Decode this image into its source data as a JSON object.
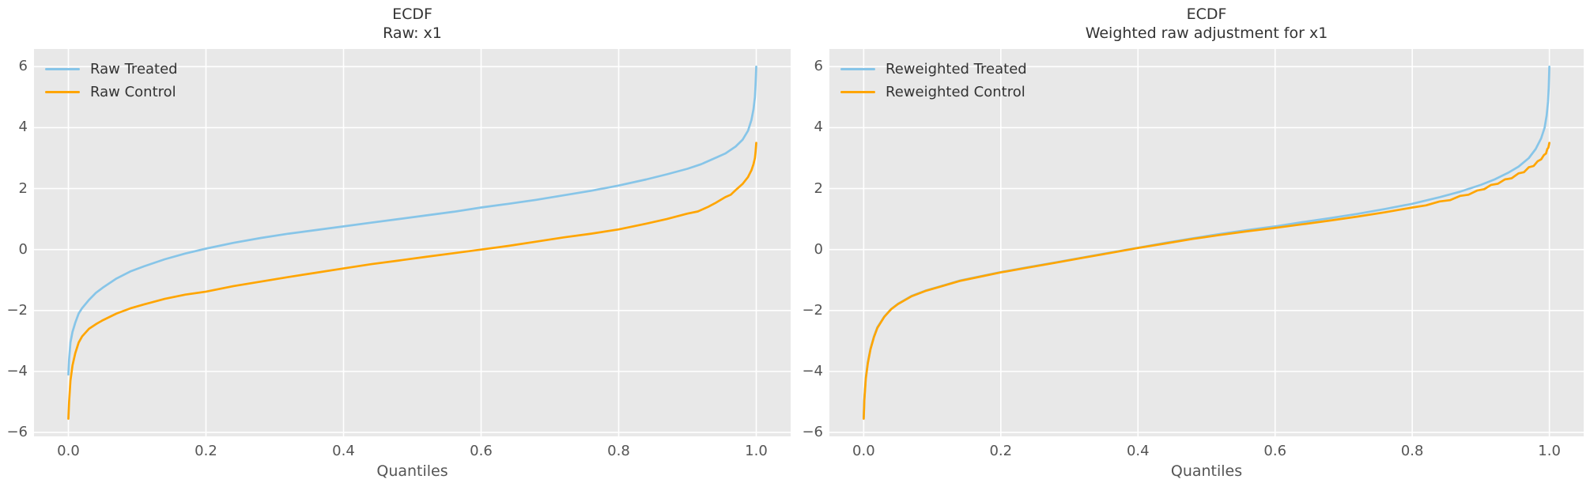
{
  "figure": {
    "background": "#ffffff",
    "axes_background": "#e8e8e8",
    "grid_color": "#ffffff",
    "tick_color": "#555555",
    "title_color": "#333333",
    "treated_color": "#87c5e8",
    "control_color": "#ffa500"
  },
  "chart_data": [
    {
      "type": "line",
      "title": "ECDF",
      "subtitle": "Raw: x1",
      "xlabel": "Quantiles",
      "grid": true,
      "legend_position": "upper left",
      "xlim": [
        -0.05,
        1.05
      ],
      "ylim": [
        -6.13,
        6.58
      ],
      "xticks": {
        "values": [
          0.0,
          0.2,
          0.4,
          0.6,
          0.8,
          1.0
        ],
        "labels": [
          "0.0",
          "0.2",
          "0.4",
          "0.6",
          "0.8",
          "1.0"
        ]
      },
      "yticks": {
        "values": [
          6,
          4,
          2,
          0,
          -2,
          -4,
          -6
        ],
        "labels": [
          "6",
          "4",
          "2",
          "0",
          "−2",
          "−4",
          "−6"
        ]
      },
      "series": [
        {
          "name": "Raw Treated",
          "color": "#87c5e8",
          "points": [
            [
              0,
              -4.1
            ],
            [
              0.001,
              -3.6
            ],
            [
              0.003,
              -3.05
            ],
            [
              0.006,
              -2.7
            ],
            [
              0.01,
              -2.4
            ],
            [
              0.015,
              -2.1
            ],
            [
              0.02,
              -1.92
            ],
            [
              0.03,
              -1.65
            ],
            [
              0.04,
              -1.42
            ],
            [
              0.05,
              -1.25
            ],
            [
              0.07,
              -0.95
            ],
            [
              0.09,
              -0.72
            ],
            [
              0.11,
              -0.55
            ],
            [
              0.14,
              -0.32
            ],
            [
              0.17,
              -0.13
            ],
            [
              0.2,
              0.03
            ],
            [
              0.24,
              0.22
            ],
            [
              0.28,
              0.38
            ],
            [
              0.32,
              0.52
            ],
            [
              0.36,
              0.64
            ],
            [
              0.4,
              0.76
            ],
            [
              0.44,
              0.88
            ],
            [
              0.48,
              1.0
            ],
            [
              0.52,
              1.12
            ],
            [
              0.56,
              1.24
            ],
            [
              0.6,
              1.38
            ],
            [
              0.64,
              1.5
            ],
            [
              0.68,
              1.63
            ],
            [
              0.72,
              1.78
            ],
            [
              0.76,
              1.93
            ],
            [
              0.8,
              2.1
            ],
            [
              0.84,
              2.3
            ],
            [
              0.87,
              2.47
            ],
            [
              0.9,
              2.65
            ],
            [
              0.92,
              2.8
            ],
            [
              0.94,
              3.0
            ],
            [
              0.955,
              3.15
            ],
            [
              0.97,
              3.38
            ],
            [
              0.98,
              3.6
            ],
            [
              0.988,
              3.9
            ],
            [
              0.993,
              4.25
            ],
            [
              0.996,
              4.6
            ],
            [
              0.998,
              5.0
            ],
            [
              0.999,
              5.4
            ],
            [
              1,
              6.0
            ]
          ]
        },
        {
          "name": "Raw Control",
          "color": "#ffa500",
          "points": [
            [
              0,
              -5.55
            ],
            [
              0.001,
              -5.0
            ],
            [
              0.003,
              -4.3
            ],
            [
              0.006,
              -3.8
            ],
            [
              0.01,
              -3.4
            ],
            [
              0.015,
              -3.05
            ],
            [
              0.02,
              -2.85
            ],
            [
              0.03,
              -2.6
            ],
            [
              0.04,
              -2.45
            ],
            [
              0.05,
              -2.32
            ],
            [
              0.07,
              -2.1
            ],
            [
              0.09,
              -1.93
            ],
            [
              0.11,
              -1.8
            ],
            [
              0.14,
              -1.62
            ],
            [
              0.17,
              -1.48
            ],
            [
              0.2,
              -1.38
            ],
            [
              0.24,
              -1.2
            ],
            [
              0.28,
              -1.05
            ],
            [
              0.32,
              -0.9
            ],
            [
              0.36,
              -0.76
            ],
            [
              0.4,
              -0.62
            ],
            [
              0.44,
              -0.48
            ],
            [
              0.48,
              -0.36
            ],
            [
              0.52,
              -0.24
            ],
            [
              0.56,
              -0.12
            ],
            [
              0.6,
              0.0
            ],
            [
              0.64,
              0.12
            ],
            [
              0.68,
              0.26
            ],
            [
              0.72,
              0.4
            ],
            [
              0.76,
              0.52
            ],
            [
              0.8,
              0.66
            ],
            [
              0.84,
              0.85
            ],
            [
              0.87,
              1.0
            ],
            [
              0.9,
              1.18
            ],
            [
              0.915,
              1.25
            ],
            [
              0.93,
              1.4
            ],
            [
              0.94,
              1.52
            ],
            [
              0.955,
              1.72
            ],
            [
              0.963,
              1.8
            ],
            [
              0.97,
              1.95
            ],
            [
              0.98,
              2.15
            ],
            [
              0.988,
              2.38
            ],
            [
              0.993,
              2.6
            ],
            [
              0.996,
              2.8
            ],
            [
              0.998,
              3.0
            ],
            [
              0.999,
              3.2
            ],
            [
              1,
              3.5
            ]
          ]
        }
      ]
    },
    {
      "type": "line",
      "title": "ECDF",
      "subtitle": "Weighted raw adjustment for x1",
      "xlabel": "Quantiles",
      "grid": true,
      "legend_position": "upper left",
      "xlim": [
        -0.05,
        1.05
      ],
      "ylim": [
        -6.13,
        6.58
      ],
      "xticks": {
        "values": [
          0.0,
          0.2,
          0.4,
          0.6,
          0.8,
          1.0
        ],
        "labels": [
          "0.0",
          "0.2",
          "0.4",
          "0.6",
          "0.8",
          "1.0"
        ]
      },
      "yticks": {
        "values": [
          6,
          4,
          2,
          0,
          -2,
          -4,
          -6
        ],
        "labels": [
          "6",
          "4",
          "2",
          "0",
          "−2",
          "−4",
          "−6"
        ]
      },
      "series": [
        {
          "name": "Reweighted Treated",
          "color": "#87c5e8",
          "points": [
            [
              0,
              -5.5
            ],
            [
              0.001,
              -4.9
            ],
            [
              0.003,
              -4.2
            ],
            [
              0.006,
              -3.7
            ],
            [
              0.01,
              -3.25
            ],
            [
              0.015,
              -2.85
            ],
            [
              0.02,
              -2.55
            ],
            [
              0.03,
              -2.2
            ],
            [
              0.04,
              -1.95
            ],
            [
              0.05,
              -1.78
            ],
            [
              0.07,
              -1.52
            ],
            [
              0.09,
              -1.35
            ],
            [
              0.11,
              -1.22
            ],
            [
              0.14,
              -1.02
            ],
            [
              0.17,
              -0.88
            ],
            [
              0.2,
              -0.74
            ],
            [
              0.24,
              -0.58
            ],
            [
              0.28,
              -0.42
            ],
            [
              0.32,
              -0.26
            ],
            [
              0.36,
              -0.1
            ],
            [
              0.4,
              0.06
            ],
            [
              0.44,
              0.22
            ],
            [
              0.48,
              0.37
            ],
            [
              0.52,
              0.51
            ],
            [
              0.56,
              0.64
            ],
            [
              0.6,
              0.76
            ],
            [
              0.64,
              0.9
            ],
            [
              0.68,
              1.03
            ],
            [
              0.72,
              1.17
            ],
            [
              0.76,
              1.33
            ],
            [
              0.8,
              1.5
            ],
            [
              0.84,
              1.72
            ],
            [
              0.87,
              1.9
            ],
            [
              0.9,
              2.12
            ],
            [
              0.92,
              2.3
            ],
            [
              0.94,
              2.52
            ],
            [
              0.955,
              2.72
            ],
            [
              0.97,
              3.0
            ],
            [
              0.98,
              3.3
            ],
            [
              0.988,
              3.65
            ],
            [
              0.993,
              4.0
            ],
            [
              0.996,
              4.4
            ],
            [
              0.998,
              4.85
            ],
            [
              0.999,
              5.3
            ],
            [
              1,
              6.0
            ]
          ]
        },
        {
          "name": "Reweighted Control",
          "color": "#ffa500",
          "points": [
            [
              0,
              -5.55
            ],
            [
              0.001,
              -4.95
            ],
            [
              0.003,
              -4.25
            ],
            [
              0.006,
              -3.73
            ],
            [
              0.01,
              -3.27
            ],
            [
              0.015,
              -2.87
            ],
            [
              0.02,
              -2.57
            ],
            [
              0.03,
              -2.21
            ],
            [
              0.04,
              -1.96
            ],
            [
              0.05,
              -1.79
            ],
            [
              0.07,
              -1.53
            ],
            [
              0.09,
              -1.36
            ],
            [
              0.11,
              -1.23
            ],
            [
              0.14,
              -1.03
            ],
            [
              0.17,
              -0.89
            ],
            [
              0.2,
              -0.75
            ],
            [
              0.24,
              -0.59
            ],
            [
              0.28,
              -0.43
            ],
            [
              0.32,
              -0.27
            ],
            [
              0.36,
              -0.11
            ],
            [
              0.4,
              0.05
            ],
            [
              0.44,
              0.2
            ],
            [
              0.48,
              0.35
            ],
            [
              0.52,
              0.48
            ],
            [
              0.56,
              0.6
            ],
            [
              0.6,
              0.71
            ],
            [
              0.64,
              0.83
            ],
            [
              0.68,
              0.95
            ],
            [
              0.72,
              1.08
            ],
            [
              0.76,
              1.22
            ],
            [
              0.8,
              1.38
            ],
            [
              0.82,
              1.45
            ],
            [
              0.84,
              1.58
            ],
            [
              0.855,
              1.62
            ],
            [
              0.87,
              1.76
            ],
            [
              0.882,
              1.8
            ],
            [
              0.895,
              1.94
            ],
            [
              0.905,
              1.98
            ],
            [
              0.915,
              2.12
            ],
            [
              0.925,
              2.16
            ],
            [
              0.935,
              2.3
            ],
            [
              0.945,
              2.34
            ],
            [
              0.955,
              2.5
            ],
            [
              0.963,
              2.54
            ],
            [
              0.97,
              2.7
            ],
            [
              0.977,
              2.74
            ],
            [
              0.983,
              2.9
            ],
            [
              0.988,
              2.96
            ],
            [
              0.992,
              3.1
            ],
            [
              0.995,
              3.15
            ],
            [
              0.997,
              3.3
            ],
            [
              0.9985,
              3.34
            ],
            [
              1,
              3.5
            ]
          ]
        }
      ]
    }
  ]
}
